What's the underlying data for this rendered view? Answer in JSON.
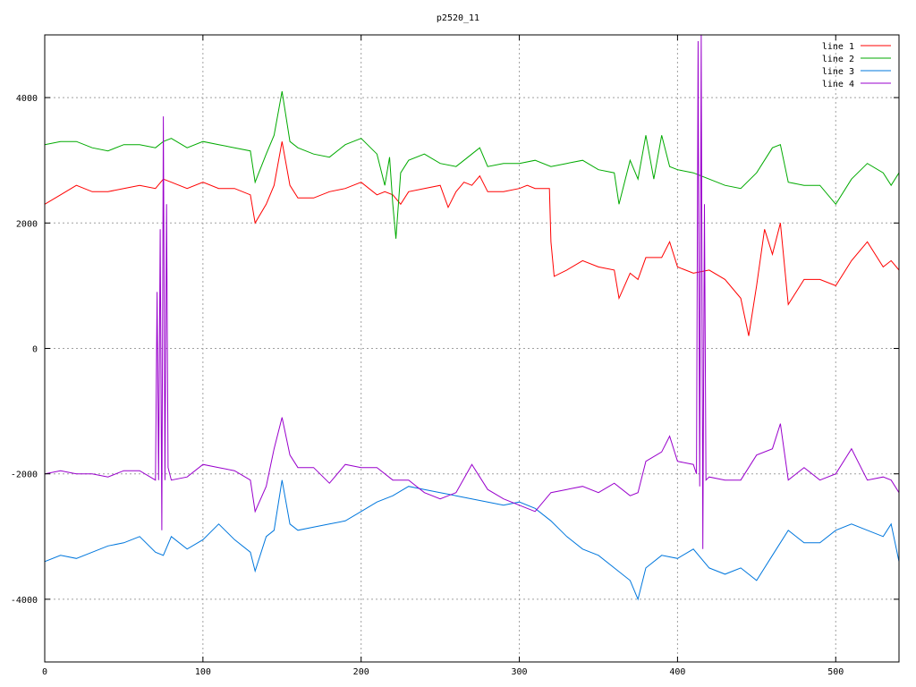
{
  "chart_data": {
    "type": "line",
    "title": "p2520_11",
    "xlabel": "",
    "ylabel": "",
    "xlim": [
      0,
      540
    ],
    "ylim": [
      -5000,
      5000
    ],
    "xticks": [
      0,
      100,
      200,
      300,
      400,
      500
    ],
    "yticks": [
      -4000,
      -2000,
      0,
      2000,
      4000
    ],
    "grid": true,
    "legend_position": "top-right",
    "series": [
      {
        "name": "line 1",
        "color": "#ff0000",
        "x": [
          0,
          10,
          20,
          30,
          40,
          50,
          60,
          70,
          75,
          80,
          90,
          100,
          110,
          120,
          130,
          133,
          140,
          145,
          150,
          155,
          160,
          170,
          180,
          190,
          200,
          210,
          215,
          220,
          225,
          230,
          240,
          250,
          255,
          260,
          265,
          270,
          275,
          280,
          290,
          300,
          305,
          310,
          319,
          320,
          322,
          330,
          340,
          350,
          360,
          363,
          370,
          375,
          380,
          390,
          395,
          400,
          410,
          420,
          430,
          440,
          445,
          450,
          455,
          460,
          465,
          470,
          480,
          490,
          500,
          510,
          520,
          530,
          535,
          540
        ],
        "y": [
          2300,
          2450,
          2600,
          2500,
          2500,
          2550,
          2600,
          2550,
          2700,
          2650,
          2550,
          2650,
          2550,
          2550,
          2450,
          2000,
          2300,
          2600,
          3300,
          2600,
          2400,
          2400,
          2500,
          2550,
          2650,
          2450,
          2500,
          2450,
          2300,
          2500,
          2550,
          2600,
          2250,
          2500,
          2650,
          2600,
          2750,
          2500,
          2500,
          2550,
          2600,
          2550,
          2550,
          1700,
          1150,
          1250,
          1400,
          1300,
          1250,
          800,
          1200,
          1100,
          1450,
          1450,
          1700,
          1300,
          1200,
          1250,
          1100,
          800,
          200,
          1000,
          1900,
          1500,
          2000,
          700,
          1100,
          1100,
          1000,
          1400,
          1700,
          1300,
          1400,
          1250
        ]
      },
      {
        "name": "line 2",
        "color": "#00aa00",
        "x": [
          0,
          10,
          20,
          30,
          40,
          50,
          60,
          70,
          75,
          80,
          90,
          100,
          110,
          120,
          130,
          133,
          140,
          145,
          150,
          155,
          160,
          170,
          180,
          190,
          200,
          210,
          215,
          218,
          220,
          222,
          225,
          230,
          240,
          250,
          260,
          265,
          270,
          275,
          280,
          290,
          300,
          310,
          320,
          330,
          340,
          350,
          360,
          363,
          370,
          375,
          380,
          385,
          390,
          395,
          400,
          410,
          420,
          430,
          440,
          450,
          460,
          465,
          470,
          480,
          490,
          500,
          510,
          520,
          530,
          535,
          540
        ],
        "y": [
          3250,
          3300,
          3300,
          3200,
          3150,
          3250,
          3250,
          3200,
          3300,
          3350,
          3200,
          3300,
          3250,
          3200,
          3150,
          2650,
          3100,
          3400,
          4100,
          3300,
          3200,
          3100,
          3050,
          3250,
          3350,
          3100,
          2600,
          3050,
          2300,
          1750,
          2800,
          3000,
          3100,
          2950,
          2900,
          3000,
          3100,
          3200,
          2900,
          2950,
          2950,
          3000,
          2900,
          2950,
          3000,
          2850,
          2800,
          2300,
          3000,
          2700,
          3400,
          2700,
          3400,
          2900,
          2850,
          2800,
          2700,
          2600,
          2550,
          2800,
          3200,
          3250,
          2650,
          2600,
          2600,
          2300,
          2700,
          2950,
          2800,
          2600,
          2800
        ]
      },
      {
        "name": "line 3",
        "color": "#0077dd",
        "x": [
          0,
          10,
          20,
          30,
          40,
          50,
          60,
          70,
          75,
          80,
          90,
          100,
          110,
          120,
          130,
          133,
          140,
          145,
          150,
          155,
          160,
          170,
          180,
          190,
          200,
          210,
          220,
          230,
          240,
          250,
          260,
          270,
          280,
          290,
          300,
          310,
          320,
          330,
          340,
          350,
          360,
          370,
          375,
          380,
          390,
          400,
          410,
          420,
          430,
          440,
          450,
          460,
          470,
          480,
          490,
          500,
          510,
          520,
          530,
          535,
          540
        ],
        "y": [
          -3400,
          -3300,
          -3350,
          -3250,
          -3150,
          -3100,
          -3000,
          -3250,
          -3300,
          -3000,
          -3200,
          -3050,
          -2800,
          -3050,
          -3250,
          -3550,
          -3000,
          -2900,
          -2100,
          -2800,
          -2900,
          -2850,
          -2800,
          -2750,
          -2600,
          -2450,
          -2350,
          -2200,
          -2250,
          -2300,
          -2350,
          -2400,
          -2450,
          -2500,
          -2450,
          -2550,
          -2750,
          -3000,
          -3200,
          -3300,
          -3500,
          -3700,
          -4000,
          -3500,
          -3300,
          -3350,
          -3200,
          -3500,
          -3600,
          -3500,
          -3700,
          -3300,
          -2900,
          -3100,
          -3100,
          -2900,
          -2800,
          -2900,
          -3000,
          -2800,
          -3400
        ]
      },
      {
        "name": "line 4",
        "color": "#9900cc",
        "x": [
          0,
          10,
          20,
          30,
          40,
          50,
          60,
          70,
          71,
          72,
          73,
          74,
          75,
          76,
          77,
          78,
          80,
          90,
          100,
          110,
          120,
          130,
          133,
          140,
          145,
          150,
          155,
          160,
          170,
          180,
          190,
          200,
          210,
          220,
          230,
          240,
          250,
          260,
          270,
          280,
          290,
          300,
          310,
          320,
          330,
          340,
          350,
          360,
          370,
          375,
          380,
          390,
          395,
          400,
          410,
          412,
          413,
          414,
          415,
          416,
          417,
          418,
          420,
          430,
          440,
          450,
          460,
          465,
          470,
          480,
          490,
          500,
          510,
          520,
          530,
          535,
          540
        ],
        "y": [
          -2000,
          -1950,
          -2000,
          -2000,
          -2050,
          -1950,
          -1950,
          -2100,
          900,
          -2100,
          1900,
          -2900,
          3700,
          -2100,
          2300,
          -1900,
          -2100,
          -2050,
          -1850,
          -1900,
          -1950,
          -2100,
          -2600,
          -2200,
          -1600,
          -1100,
          -1700,
          -1900,
          -1900,
          -2150,
          -1850,
          -1900,
          -1900,
          -2100,
          -2100,
          -2300,
          -2400,
          -2300,
          -1850,
          -2250,
          -2400,
          -2500,
          -2600,
          -2300,
          -2250,
          -2200,
          -2300,
          -2150,
          -2350,
          -2300,
          -1800,
          -1650,
          -1400,
          -1800,
          -1850,
          -2000,
          4900,
          -2200,
          5000,
          -3200,
          2300,
          -2100,
          -2050,
          -2100,
          -2100,
          -1700,
          -1600,
          -1200,
          -2100,
          -1900,
          -2100,
          -2000,
          -1600,
          -2100,
          -2050,
          -2100,
          -2300
        ]
      }
    ]
  }
}
